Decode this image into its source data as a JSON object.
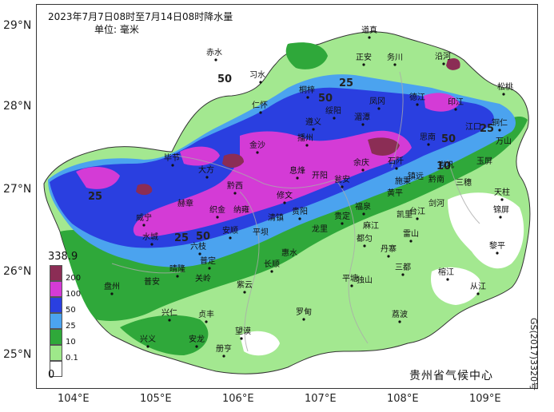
{
  "title": {
    "line1": "2023年7月7日08时至7月14日08时降水量",
    "line2": "单位: 毫米"
  },
  "axes": {
    "lat_ticks": [
      "29°N",
      "28°N",
      "27°N",
      "26°N",
      "25°N"
    ],
    "lon_ticks": [
      "104°E",
      "105°E",
      "106°E",
      "107°E",
      "108°E",
      "109°E"
    ]
  },
  "legend": {
    "max_value": "338.9",
    "min_value": "0",
    "classes": [
      {
        "label": "200",
        "color": "#8b2d55"
      },
      {
        "label": "100",
        "color": "#d43bd6"
      },
      {
        "label": "50",
        "color": "#2a3fe0"
      },
      {
        "label": "25",
        "color": "#4ba3ef"
      },
      {
        "label": "10",
        "color": "#2fa83a"
      },
      {
        "label": "0.1",
        "color": "#9ee88a"
      }
    ]
  },
  "contour_labels": [
    "50",
    "25",
    "50",
    "25",
    "50",
    "10",
    "25",
    "50",
    "25"
  ],
  "cities": [
    "道真",
    "赤水",
    "习水",
    "正安",
    "务川",
    "沿河",
    "松桃",
    "桐梓",
    "绥阳",
    "凤冈",
    "德江",
    "印江",
    "铜仁",
    "仁怀",
    "遵义",
    "湄潭",
    "思南",
    "石阡",
    "江口",
    "万山",
    "金沙",
    "播州",
    "余庆",
    "玉屏",
    "毕节",
    "大方",
    "黔西",
    "息烽",
    "瓮安",
    "施秉",
    "镇远",
    "岑巩",
    "三穗",
    "天柱",
    "威宁",
    "织金",
    "修文",
    "开阳",
    "黄平",
    "剑河",
    "锦屏",
    "赫章",
    "纳雍",
    "清镇",
    "贵阳",
    "龙里",
    "福泉",
    "麻江",
    "台江",
    "黎平",
    "水城",
    "六枝",
    "安顺",
    "平坝",
    "贵定",
    "都匀",
    "雷山",
    "榕江",
    "普定",
    "长顺",
    "惠水",
    "丹寨",
    "三都",
    "从江",
    "盘州",
    "晴隆",
    "关岭",
    "紫云",
    "平塘",
    "独山",
    "荔波",
    "普安",
    "兴仁",
    "贞丰",
    "望谟",
    "罗甸",
    "兴义",
    "安龙",
    "册亨",
    "凯里",
    "黔南"
  ],
  "agency": "贵州省气候中心",
  "map_code": "GS(2017)3320号"
}
